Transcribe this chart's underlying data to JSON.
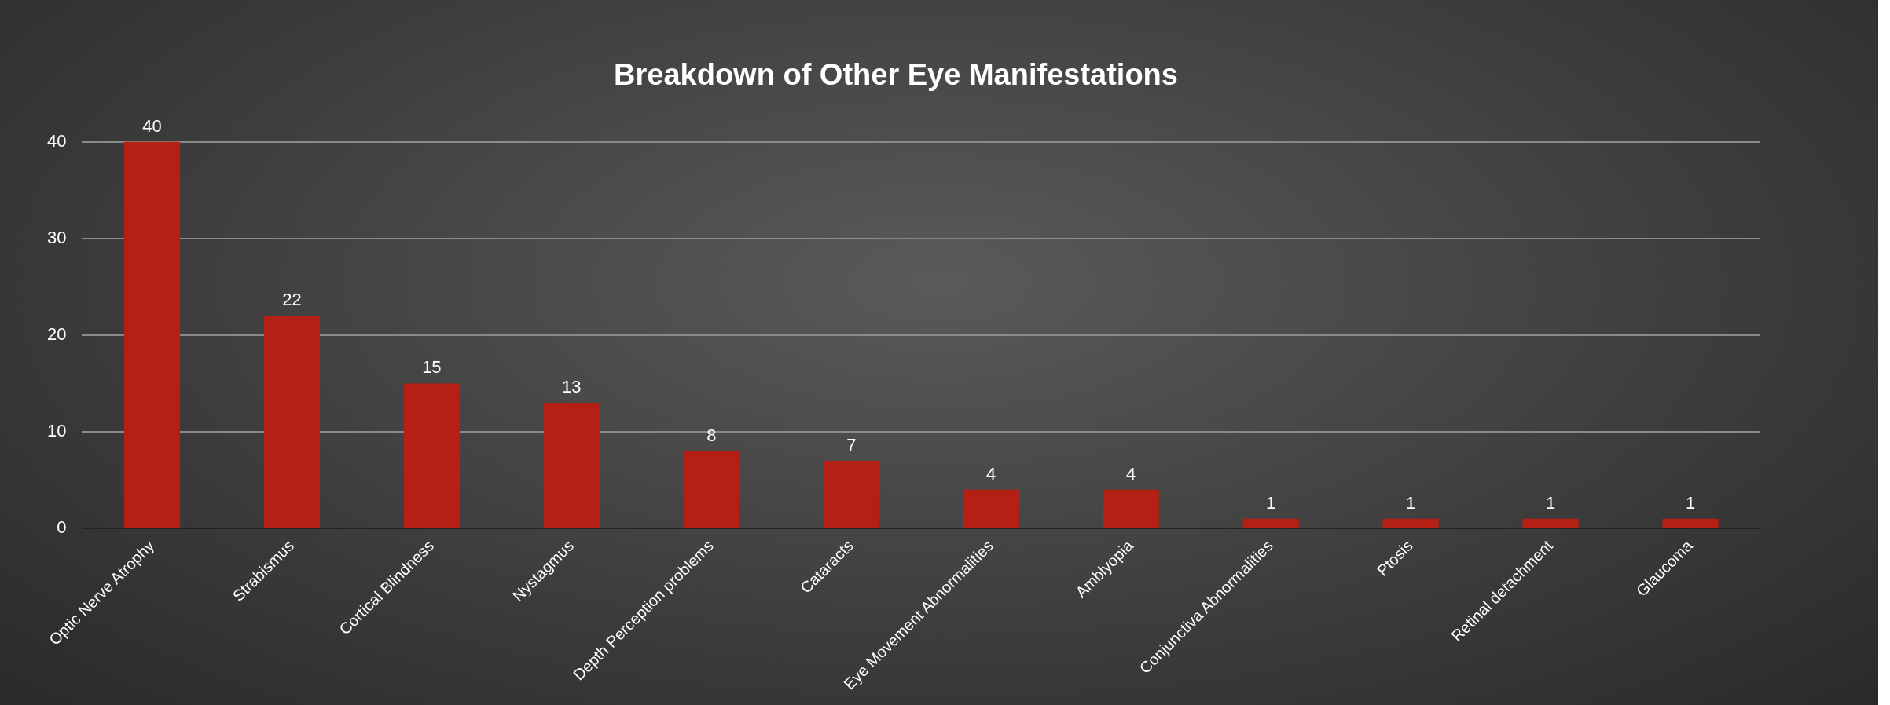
{
  "chart_data": {
    "type": "bar",
    "title": "Breakdown of Other Eye Manifestations",
    "categories": [
      "Optic Nerve Atrophy",
      "Strabismus",
      "Cortical Blindness",
      "Nystagmus",
      "Depth Perception problems",
      "Cataracts",
      "Eye Movement Abnormalities",
      "Amblyopia",
      "Conjunctiva Abnormalities",
      "Ptosis",
      "Retinal detachment",
      "Glaucoma"
    ],
    "values": [
      40,
      22,
      15,
      13,
      8,
      7,
      4,
      4,
      1,
      1,
      1,
      1
    ],
    "color": "#b52015",
    "ylim": [
      0,
      40
    ],
    "yticks": [
      0,
      10,
      20,
      30,
      40
    ],
    "grid": "y",
    "data_labels": true
  }
}
